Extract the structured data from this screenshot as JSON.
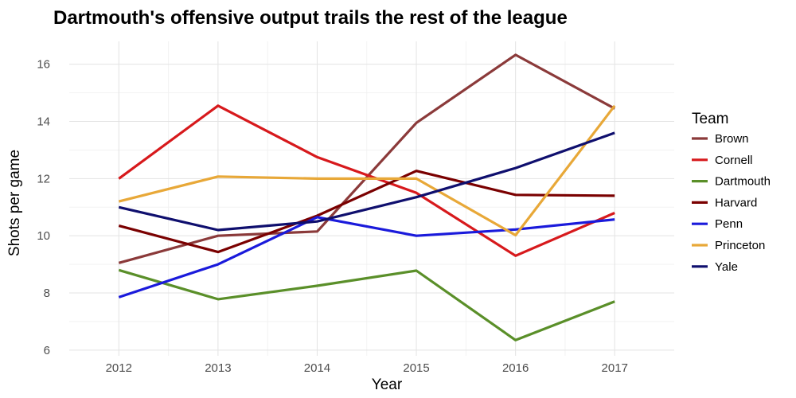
{
  "chart_data": {
    "type": "line",
    "title": "Dartmouth's offensive output trails the rest of the league",
    "xlabel": "Year",
    "ylabel": "Shots per game",
    "x": [
      2012,
      2013,
      2014,
      2015,
      2016,
      2017
    ],
    "xlim": [
      2011.5,
      2017.6
    ],
    "ylim": [
      5.8,
      16.8
    ],
    "yticks": [
      6,
      8,
      10,
      12,
      14,
      16
    ],
    "grid": true,
    "legend": {
      "title": "Team",
      "position": "right"
    },
    "series": [
      {
        "name": "Brown",
        "color": "#8b3a3a",
        "values": [
          9.05,
          10.0,
          10.15,
          13.95,
          16.33,
          14.45
        ]
      },
      {
        "name": "Cornell",
        "color": "#d7191c",
        "values": [
          12.0,
          14.55,
          12.75,
          11.5,
          9.3,
          10.8
        ]
      },
      {
        "name": "Dartmouth",
        "color": "#5a8f29",
        "values": [
          8.8,
          7.78,
          8.25,
          8.78,
          6.35,
          7.7
        ]
      },
      {
        "name": "Harvard",
        "color": "#7a0000",
        "values": [
          10.35,
          9.43,
          10.7,
          12.27,
          11.43,
          11.4
        ]
      },
      {
        "name": "Penn",
        "color": "#1a1adb",
        "values": [
          7.85,
          9.0,
          10.65,
          10.0,
          10.22,
          10.57
        ]
      },
      {
        "name": "Princeton",
        "color": "#e8a838",
        "values": [
          11.2,
          12.07,
          12.0,
          12.0,
          10.02,
          14.55
        ]
      },
      {
        "name": "Yale",
        "color": "#0f0f6e",
        "values": [
          11.0,
          10.2,
          10.5,
          11.35,
          12.37,
          13.6
        ]
      }
    ]
  }
}
